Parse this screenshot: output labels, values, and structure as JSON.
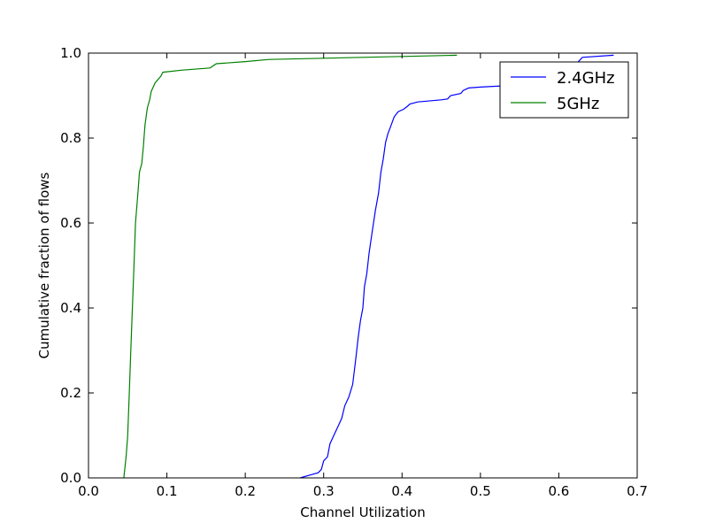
{
  "chart_data": {
    "type": "line",
    "xlabel": "Channel Utilization",
    "ylabel": "Cumulative fraction of flows",
    "xlim": [
      0.0,
      0.7
    ],
    "ylim": [
      0.0,
      1.0
    ],
    "x_ticks": [
      "0.0",
      "0.1",
      "0.2",
      "0.3",
      "0.4",
      "0.5",
      "0.6",
      "0.7"
    ],
    "y_ticks": [
      "0.0",
      "0.2",
      "0.4",
      "0.6",
      "0.8",
      "1.0"
    ],
    "grid": false,
    "legend_position": "top-right",
    "series": [
      {
        "name": "2.4GHz",
        "color": "#0000ff",
        "points": [
          [
            0.27,
            0.0
          ],
          [
            0.285,
            0.008
          ],
          [
            0.293,
            0.012
          ],
          [
            0.297,
            0.02
          ],
          [
            0.3,
            0.04
          ],
          [
            0.305,
            0.05
          ],
          [
            0.308,
            0.08
          ],
          [
            0.313,
            0.1
          ],
          [
            0.318,
            0.12
          ],
          [
            0.323,
            0.14
          ],
          [
            0.327,
            0.17
          ],
          [
            0.332,
            0.19
          ],
          [
            0.337,
            0.22
          ],
          [
            0.341,
            0.28
          ],
          [
            0.344,
            0.33
          ],
          [
            0.347,
            0.37
          ],
          [
            0.35,
            0.4
          ],
          [
            0.352,
            0.45
          ],
          [
            0.355,
            0.48
          ],
          [
            0.358,
            0.53
          ],
          [
            0.362,
            0.58
          ],
          [
            0.366,
            0.63
          ],
          [
            0.37,
            0.67
          ],
          [
            0.373,
            0.72
          ],
          [
            0.376,
            0.75
          ],
          [
            0.379,
            0.79
          ],
          [
            0.382,
            0.81
          ],
          [
            0.386,
            0.83
          ],
          [
            0.39,
            0.85
          ],
          [
            0.395,
            0.862
          ],
          [
            0.402,
            0.868
          ],
          [
            0.407,
            0.875
          ],
          [
            0.41,
            0.88
          ],
          [
            0.42,
            0.885
          ],
          [
            0.45,
            0.89
          ],
          [
            0.458,
            0.892
          ],
          [
            0.462,
            0.9
          ],
          [
            0.475,
            0.905
          ],
          [
            0.478,
            0.912
          ],
          [
            0.485,
            0.918
          ],
          [
            0.5,
            0.92
          ],
          [
            0.58,
            0.928
          ],
          [
            0.6,
            0.94
          ],
          [
            0.62,
            0.97
          ],
          [
            0.63,
            0.99
          ],
          [
            0.67,
            0.995
          ]
        ]
      },
      {
        "name": "5GHz",
        "color": "#008000",
        "points": [
          [
            0.045,
            0.0
          ],
          [
            0.048,
            0.05
          ],
          [
            0.05,
            0.1
          ],
          [
            0.052,
            0.2
          ],
          [
            0.054,
            0.3
          ],
          [
            0.056,
            0.4
          ],
          [
            0.058,
            0.5
          ],
          [
            0.06,
            0.6
          ],
          [
            0.063,
            0.67
          ],
          [
            0.065,
            0.72
          ],
          [
            0.068,
            0.74
          ],
          [
            0.07,
            0.78
          ],
          [
            0.072,
            0.83
          ],
          [
            0.075,
            0.87
          ],
          [
            0.078,
            0.89
          ],
          [
            0.08,
            0.91
          ],
          [
            0.085,
            0.93
          ],
          [
            0.092,
            0.945
          ],
          [
            0.095,
            0.955
          ],
          [
            0.12,
            0.96
          ],
          [
            0.155,
            0.965
          ],
          [
            0.163,
            0.975
          ],
          [
            0.2,
            0.98
          ],
          [
            0.23,
            0.985
          ],
          [
            0.3,
            0.988
          ],
          [
            0.4,
            0.992
          ],
          [
            0.47,
            0.995
          ]
        ]
      }
    ]
  }
}
